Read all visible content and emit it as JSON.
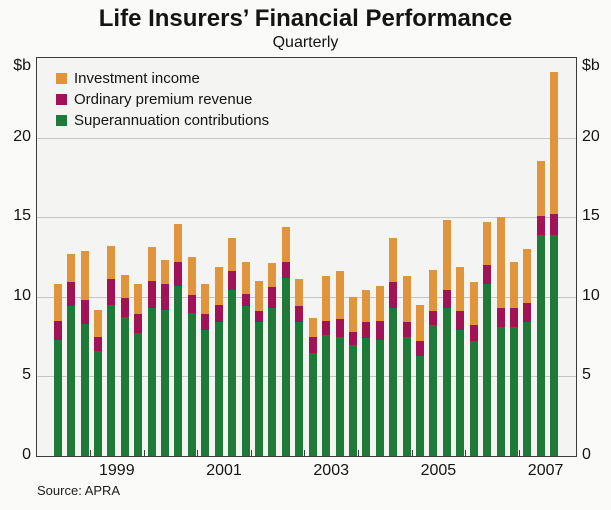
{
  "header": {
    "title": "Life Insurers’ Financial Performance",
    "subtitle": "Quarterly"
  },
  "axes": {
    "y_unit_left": "$b",
    "y_unit_right": "$b",
    "y_tick_labels": [
      "0",
      "5",
      "10",
      "15",
      "20"
    ],
    "x_year_labels": [
      "1999",
      "2001",
      "2003",
      "2005",
      "2007"
    ]
  },
  "footer": {
    "source": "Source: APRA"
  },
  "chart_data": {
    "type": "bar",
    "stacked": true,
    "title": "Life Insurers’ Financial Performance",
    "subtitle": "Quarterly",
    "ylabel": "$b",
    "ylim": [
      0,
      25
    ],
    "y_ticks": [
      0,
      5,
      10,
      15,
      20
    ],
    "grid": true,
    "legend_position": "top-left",
    "x": [
      "1998Q2",
      "1998Q3",
      "1998Q4",
      "1999Q1",
      "1999Q2",
      "1999Q3",
      "1999Q4",
      "2000Q1",
      "2000Q2",
      "2000Q3",
      "2000Q4",
      "2001Q1",
      "2001Q2",
      "2001Q3",
      "2001Q4",
      "2002Q1",
      "2002Q2",
      "2002Q3",
      "2002Q4",
      "2003Q1",
      "2003Q2",
      "2003Q3",
      "2003Q4",
      "2004Q1",
      "2004Q2",
      "2004Q3",
      "2004Q4",
      "2005Q1",
      "2005Q2",
      "2005Q3",
      "2005Q4",
      "2006Q1",
      "2006Q2",
      "2006Q3",
      "2006Q4",
      "2007Q1",
      "2007Q2",
      "2007Q3"
    ],
    "x_axis_year_labels": [
      "1999",
      "2001",
      "2003",
      "2005",
      "2007"
    ],
    "series": [
      {
        "name": "Investment income",
        "color": "#e0943c",
        "values": [
          2.3,
          1.8,
          3.1,
          1.7,
          2.1,
          1.5,
          1.9,
          2.1,
          1.5,
          2.4,
          2.4,
          1.9,
          2.4,
          2.1,
          2.0,
          1.9,
          1.5,
          2.2,
          1.7,
          1.2,
          2.8,
          3.0,
          2.2,
          2.0,
          2.2,
          2.8,
          2.9,
          2.3,
          2.6,
          4.4,
          2.8,
          2.7,
          2.7,
          5.7,
          2.9,
          3.4,
          3.4,
          8.9
        ]
      },
      {
        "name": "Ordinary premium revenue",
        "color": "#a11257",
        "values": [
          1.2,
          1.5,
          1.5,
          0.9,
          1.6,
          1.2,
          1.2,
          1.7,
          1.6,
          1.5,
          1.1,
          1.0,
          1.1,
          1.2,
          0.8,
          0.7,
          1.3,
          1.0,
          1.0,
          1.0,
          0.9,
          1.1,
          0.8,
          1.0,
          1.2,
          1.6,
          0.9,
          0.9,
          0.9,
          1.1,
          1.2,
          1.0,
          1.2,
          1.2,
          1.2,
          1.2,
          1.2,
          1.3
        ]
      },
      {
        "name": "Superannuation contributions",
        "color": "#1f7a38",
        "values": [
          7.3,
          9.4,
          8.3,
          6.6,
          9.5,
          8.7,
          7.7,
          9.3,
          9.2,
          10.7,
          9.0,
          7.9,
          8.4,
          10.4,
          9.4,
          8.4,
          9.3,
          11.2,
          8.4,
          6.5,
          7.6,
          7.5,
          7.0,
          7.4,
          7.3,
          9.3,
          7.5,
          6.3,
          8.2,
          9.3,
          7.9,
          7.2,
          10.8,
          8.1,
          8.1,
          8.4,
          13.9,
          13.9
        ]
      }
    ]
  }
}
